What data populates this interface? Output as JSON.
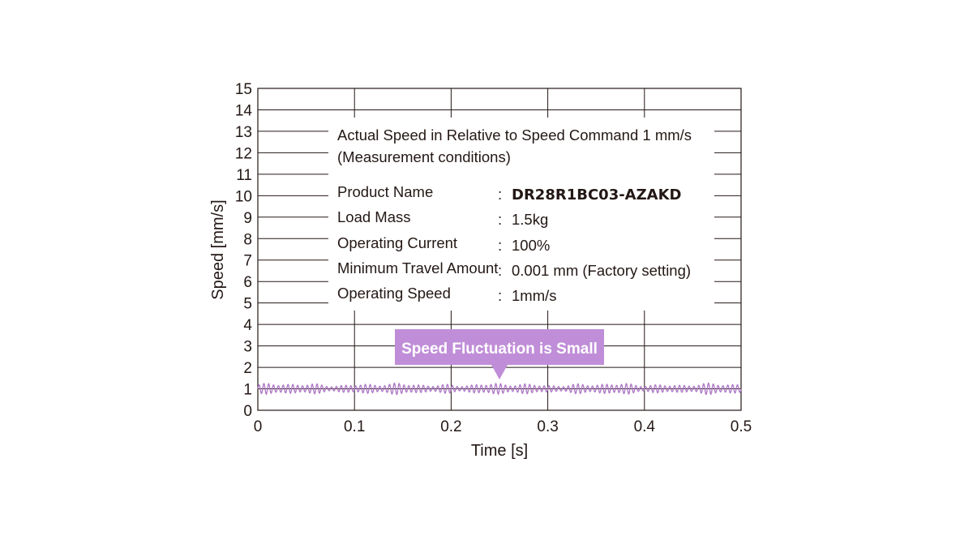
{
  "chart_data": {
    "type": "line",
    "xlabel": "Time [s]",
    "ylabel": "Speed [mm/s]",
    "xlim": [
      0,
      0.5
    ],
    "ylim": [
      0,
      15
    ],
    "x_ticks": [
      "0",
      "0.1",
      "0.2",
      "0.3",
      "0.4",
      "0.5"
    ],
    "y_ticks": [
      "0",
      "1",
      "2",
      "3",
      "4",
      "5",
      "6",
      "7",
      "8",
      "9",
      "10",
      "11",
      "12",
      "13",
      "14",
      "15"
    ],
    "grid": true,
    "series": [
      {
        "color": "#b07cc6",
        "description": "oscillating around 1 mm/s",
        "mean": 1.0,
        "min": 0.75,
        "max": 1.3,
        "period_s": 0.005
      }
    ]
  },
  "annotation": {
    "title_line1": "Actual Speed in Relative to Speed Command 1 mm/s",
    "title_line2": "(Measurement conditions)",
    "rows": [
      {
        "label": "Product Name",
        "value": "DR28R1BC03-AZAKD"
      },
      {
        "label": "Load Mass",
        "value": "1.5kg"
      },
      {
        "label": "Operating Current",
        "value": "100%"
      },
      {
        "label": "Minimum Travel Amount",
        "value": "0.001 mm (Factory setting)"
      },
      {
        "label": "Operating Speed",
        "value": "1mm/s"
      }
    ],
    "separator": ":"
  },
  "callout": {
    "text": "Speed Fluctuation is Small",
    "color": "#c08ed8"
  }
}
